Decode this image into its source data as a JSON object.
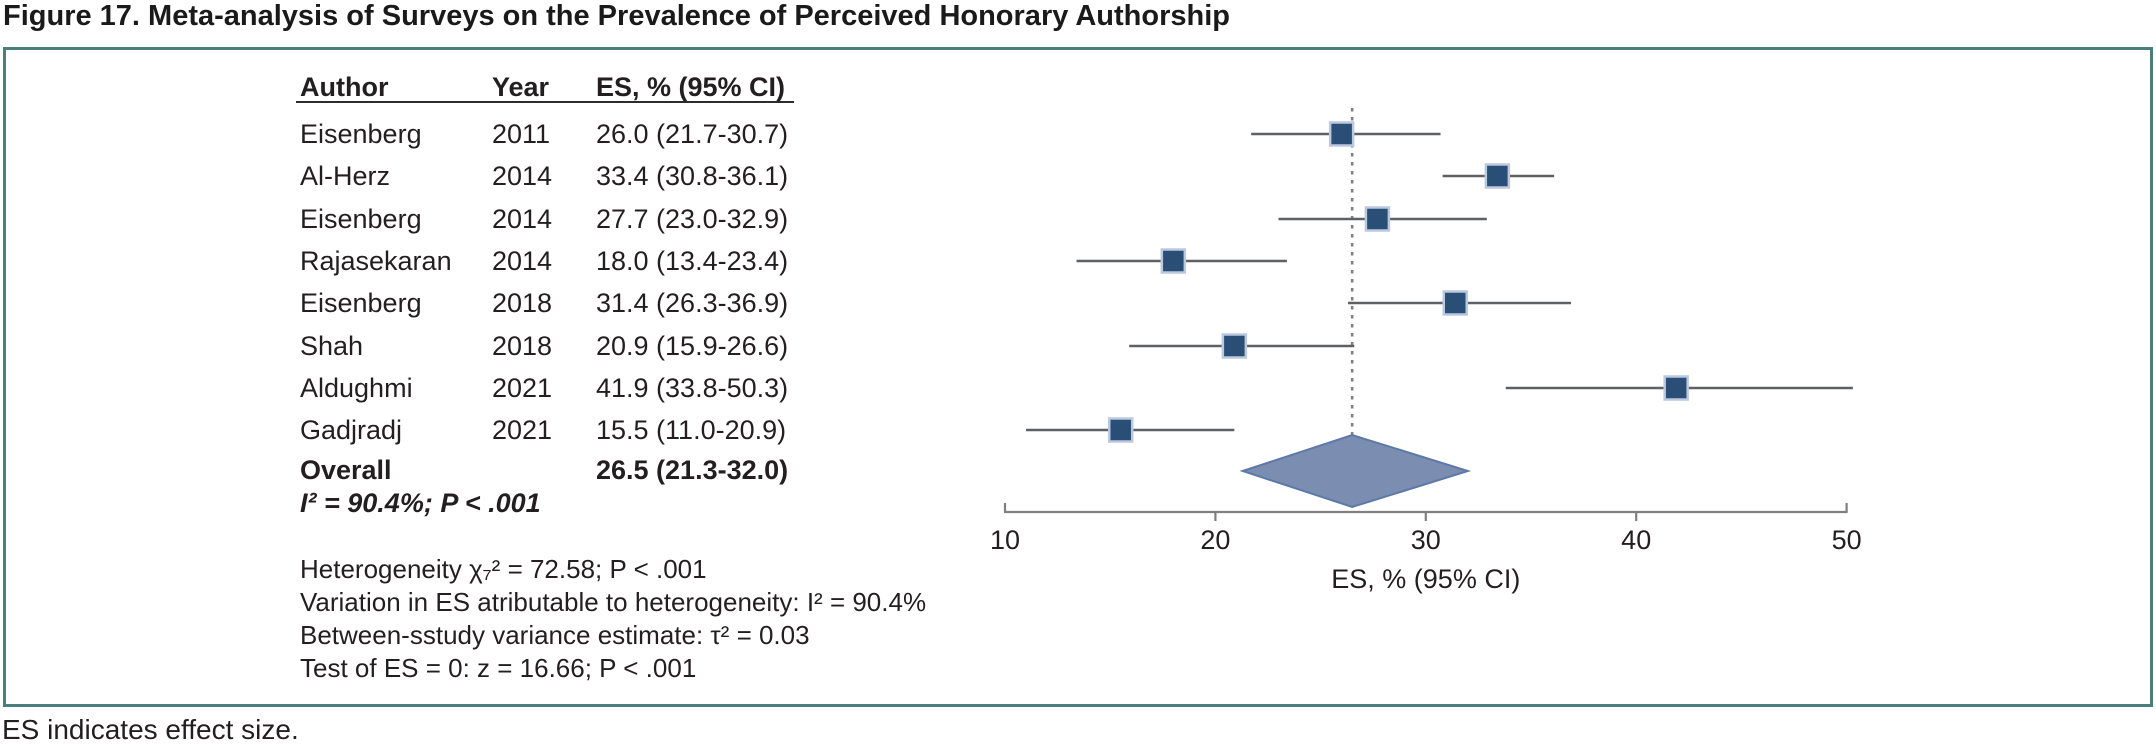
{
  "figure_title": "Figure 17. Meta-analysis of Surveys on the Prevalence of Perceived Honorary Authorship",
  "footnote": "ES indicates effect size.",
  "table": {
    "headers": [
      "Author",
      "Year",
      "ES, % (95% CI)"
    ],
    "rows": [
      {
        "author": "Eisenberg",
        "year": "2011",
        "es": "26.0 (21.7-30.7)"
      },
      {
        "author": "Al-Herz",
        "year": "2014",
        "es": "33.4 (30.8-36.1)"
      },
      {
        "author": "Eisenberg",
        "year": "2014",
        "es": "27.7 (23.0-32.9)"
      },
      {
        "author": "Rajasekaran",
        "year": "2014",
        "es": "18.0 (13.4-23.4)"
      },
      {
        "author": "Eisenberg",
        "year": "2018",
        "es": "31.4 (26.3-36.9)"
      },
      {
        "author": "Shah",
        "year": "2018",
        "es": "20.9 (15.9-26.6)"
      },
      {
        "author": "Aldughmi",
        "year": "2021",
        "es": "41.9 (33.8-50.3)"
      },
      {
        "author": "Gadjradj",
        "year": "2021",
        "es": "15.5 (11.0-20.9)"
      }
    ],
    "overall_label": "Overall",
    "overall_es": "26.5 (21.3-32.0)",
    "overall_heterogeneity": "I² = 90.4%; P < .001",
    "stats_lines": [
      "Heterogeneity χ₇² = 72.58; P < .001",
      "Variation in ES atributable to heterogeneity: I² = 90.4%",
      "Between-sstudy variance estimate: τ² = 0.03",
      "Test of ES = 0: z = 16.66; P < .001"
    ]
  },
  "chart_data": {
    "type": "forest",
    "xlabel": "ES, % (95% CI)",
    "xlim": [
      10,
      50
    ],
    "xticks": [
      10,
      20,
      30,
      40,
      50
    ],
    "studies": [
      {
        "author": "Eisenberg",
        "year": "2011",
        "es": 26.0,
        "ci_low": 21.7,
        "ci_high": 30.7
      },
      {
        "author": "Al-Herz",
        "year": "2014",
        "es": 33.4,
        "ci_low": 30.8,
        "ci_high": 36.1
      },
      {
        "author": "Eisenberg",
        "year": "2014",
        "es": 27.7,
        "ci_low": 23.0,
        "ci_high": 32.9
      },
      {
        "author": "Rajasekaran",
        "year": "2014",
        "es": 18.0,
        "ci_low": 13.4,
        "ci_high": 23.4
      },
      {
        "author": "Eisenberg",
        "year": "2018",
        "es": 31.4,
        "ci_low": 26.3,
        "ci_high": 36.9
      },
      {
        "author": "Shah",
        "year": "2018",
        "es": 20.9,
        "ci_low": 15.9,
        "ci_high": 26.6
      },
      {
        "author": "Aldughmi",
        "year": "2021",
        "es": 41.9,
        "ci_low": 33.8,
        "ci_high": 50.3
      },
      {
        "author": "Gadjradj",
        "year": "2021",
        "es": 15.5,
        "ci_low": 11.0,
        "ci_high": 20.9
      }
    ],
    "overall": {
      "es": 26.5,
      "ci_low": 21.3,
      "ci_high": 32.0
    },
    "reference_line": 26.5,
    "colors": {
      "marker_fill": "#2a4f76",
      "marker_border": "#bcc8e0",
      "diamond_fill": "#7b8db1",
      "diamond_border": "#5d79a8",
      "ci_line": "#5f6062",
      "ref_line": "#808080",
      "axis_line": "#7f7f7f",
      "text": "#231f20",
      "panel_border": "#4a7f7d"
    }
  }
}
